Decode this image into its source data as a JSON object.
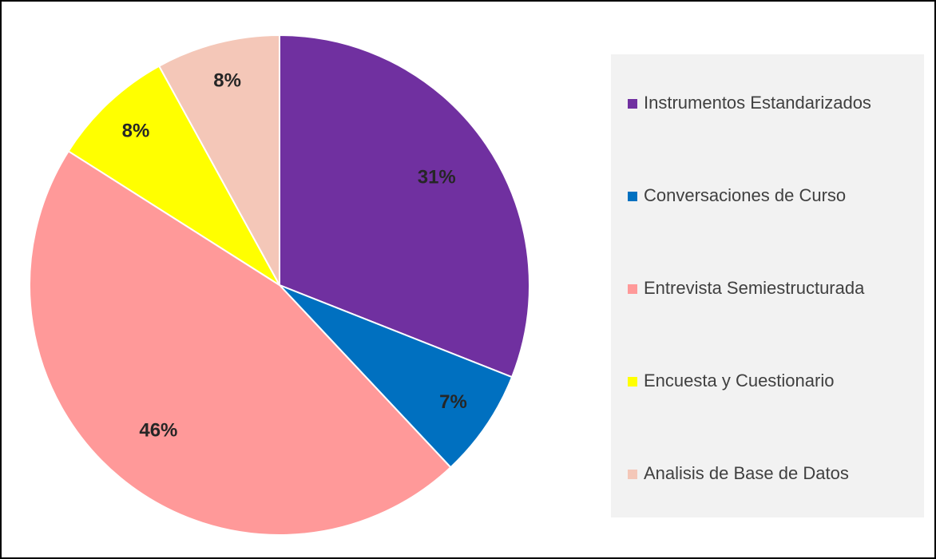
{
  "chart_data": {
    "type": "pie",
    "categories": [
      "Instrumentos Estandarizados",
      "Conversaciones de Curso",
      "Entrevista Semiestructurada",
      "Encuesta y Cuestionario",
      "Analisis de Base de Datos"
    ],
    "values": [
      31,
      7,
      46,
      8,
      8
    ],
    "value_labels": [
      "31%",
      "7%",
      "46%",
      "8%",
      "8%"
    ],
    "colors": [
      "#7030a0",
      "#0070c0",
      "#ff9999",
      "#ffff00",
      "#f4c7b8"
    ],
    "legend": "right"
  }
}
